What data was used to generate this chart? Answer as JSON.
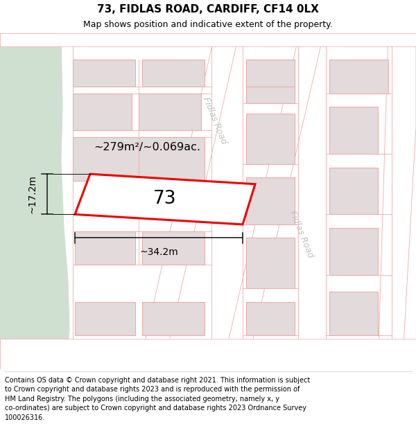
{
  "title": "73, FIDLAS ROAD, CARDIFF, CF14 0LX",
  "subtitle": "Map shows position and indicative extent of the property.",
  "footer": "Contains OS data © Crown copyright and database right 2021. This information is subject to Crown copyright and database rights 2023 and is reproduced with the permission of\nHM Land Registry. The polygons (including the associated geometry, namely x, y co-ordinates) are subject to Crown copyright and database rights 2023 Ordnance Survey\n100026316.",
  "bg_color": "#f7f2f2",
  "road_white": "#ffffff",
  "road_border": "#f0aaaa",
  "building_fill": "#e2dadb",
  "building_border": "#f0aaaa",
  "green_fill": "#cfe0d0",
  "plot_fill": "#ffffff",
  "plot_border": "#ee0000",
  "dim_color": "#111111",
  "text_area": "~279m²/~0.069ac.",
  "text_num": "73",
  "text_w": "~34.2m",
  "text_h": "~17.2m",
  "road_name": "Fidlas Road",
  "road_text_color": "#c0c0c0",
  "title_fs": 11,
  "sub_fs": 9,
  "footer_fs": 7
}
